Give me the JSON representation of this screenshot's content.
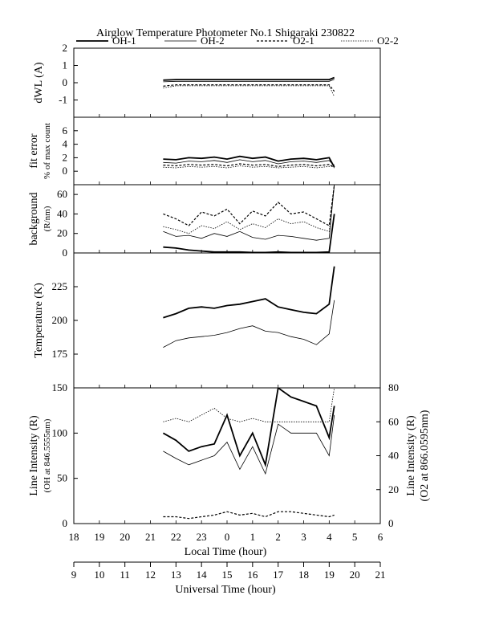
{
  "title": "Airglow Temperature Photometer No.1  Shigaraki  230822",
  "legend": [
    {
      "name": "OH-1",
      "dash": "none",
      "width": 1.8
    },
    {
      "name": "OH-2",
      "dash": "none",
      "width": 0.8
    },
    {
      "name": "O2-1",
      "dash": "3,2",
      "width": 1.2
    },
    {
      "name": "O2-2",
      "dash": "1.5,1.5",
      "width": 0.8
    }
  ],
  "x_axes": {
    "local": {
      "label": "Local Time (hour)",
      "ticks": [
        "18",
        "19",
        "20",
        "21",
        "22",
        "23",
        "0",
        "1",
        "2",
        "3",
        "4",
        "5",
        "6"
      ]
    },
    "universal": {
      "label": "Universal Time (hour)",
      "ticks": [
        "9",
        "10",
        "11",
        "12",
        "13",
        "14",
        "15",
        "16",
        "17",
        "18",
        "19",
        "20",
        "21"
      ]
    }
  },
  "chart_data": [
    {
      "panel": "dWL",
      "type": "line",
      "ylabel": [
        "dWL (A)"
      ],
      "ylim": [
        -2,
        2
      ],
      "yticks": [
        "2",
        "1",
        "0",
        "-1"
      ],
      "x": [
        21.5,
        22,
        22.5,
        23,
        23.5,
        0,
        0.5,
        1,
        1.5,
        2,
        2.5,
        3,
        3.5,
        4,
        4.2
      ],
      "series": [
        {
          "name": "OH-1",
          "values": [
            0.15,
            0.18,
            0.18,
            0.18,
            0.18,
            0.18,
            0.18,
            0.18,
            0.18,
            0.18,
            0.18,
            0.18,
            0.18,
            0.18,
            0.3
          ]
        },
        {
          "name": "OH-2",
          "values": [
            0.05,
            0.08,
            0.08,
            0.08,
            0.08,
            0.08,
            0.08,
            0.08,
            0.08,
            0.08,
            0.08,
            0.08,
            0.08,
            0.08,
            0.2
          ]
        },
        {
          "name": "O2-1",
          "values": [
            -0.2,
            -0.12,
            -0.12,
            -0.12,
            -0.12,
            -0.12,
            -0.12,
            -0.12,
            -0.12,
            -0.12,
            -0.12,
            -0.12,
            -0.12,
            -0.12,
            -0.5
          ]
        },
        {
          "name": "O2-2",
          "values": [
            -0.3,
            -0.18,
            -0.18,
            -0.18,
            -0.18,
            -0.18,
            -0.18,
            -0.18,
            -0.18,
            -0.18,
            -0.18,
            -0.18,
            -0.18,
            -0.18,
            -0.8
          ]
        }
      ]
    },
    {
      "panel": "fit error",
      "type": "line",
      "ylabel": [
        "fit error",
        "% of max count"
      ],
      "ylim": [
        -2,
        8
      ],
      "yticks": [
        "6",
        "4",
        "2",
        "0"
      ],
      "x": [
        21.5,
        22,
        22.5,
        23,
        23.5,
        0,
        0.5,
        1,
        1.5,
        2,
        2.5,
        3,
        3.5,
        4,
        4.2
      ],
      "series": [
        {
          "name": "OH-1",
          "values": [
            1.8,
            1.7,
            2.0,
            1.9,
            2.1,
            1.8,
            2.2,
            1.9,
            2.1,
            1.5,
            1.8,
            1.9,
            1.7,
            2.0,
            0.6
          ]
        },
        {
          "name": "OH-2",
          "values": [
            1.3,
            1.2,
            1.5,
            1.4,
            1.6,
            1.3,
            1.7,
            1.4,
            1.6,
            1.1,
            1.4,
            1.5,
            1.3,
            1.6,
            0.8
          ]
        },
        {
          "name": "O2-1",
          "values": [
            0.9,
            0.8,
            1.0,
            0.9,
            1.0,
            0.8,
            1.1,
            0.9,
            1.0,
            0.7,
            0.9,
            1.0,
            0.8,
            1.0,
            0.5
          ]
        },
        {
          "name": "O2-2",
          "values": [
            0.6,
            0.5,
            0.7,
            0.6,
            0.7,
            0.5,
            0.8,
            0.6,
            0.7,
            0.5,
            0.6,
            0.7,
            0.5,
            0.7,
            1.0
          ]
        }
      ]
    },
    {
      "panel": "background",
      "type": "line",
      "ylabel": [
        "background",
        "(R/nm)"
      ],
      "ylim": [
        0,
        70
      ],
      "yticks": [
        "60",
        "40",
        "20",
        "0"
      ],
      "x": [
        21.5,
        22,
        22.5,
        23,
        23.5,
        0,
        0.5,
        1,
        1.5,
        2,
        2.5,
        3,
        3.5,
        4,
        4.2
      ],
      "series": [
        {
          "name": "OH-1",
          "values": [
            6,
            5,
            3,
            2,
            1,
            1,
            1,
            0.5,
            0.5,
            1,
            0.5,
            0.5,
            0.5,
            1,
            40
          ]
        },
        {
          "name": "OH-2",
          "values": [
            22,
            17,
            18,
            15,
            20,
            17,
            22,
            16,
            14,
            18,
            17,
            15,
            13,
            15,
            70
          ]
        },
        {
          "name": "O2-1",
          "values": [
            40,
            35,
            28,
            42,
            38,
            45,
            30,
            43,
            38,
            52,
            40,
            42,
            35,
            28,
            70
          ]
        },
        {
          "name": "O2-2",
          "values": [
            27,
            24,
            20,
            28,
            25,
            32,
            24,
            30,
            26,
            35,
            30,
            32,
            26,
            22,
            70
          ]
        }
      ]
    },
    {
      "panel": "Temperature",
      "type": "line",
      "ylabel": [
        "Temperature (K)"
      ],
      "ylim": [
        150,
        250
      ],
      "yticks": [
        "225",
        "200",
        "175"
      ],
      "x": [
        21.5,
        22,
        22.5,
        23,
        23.5,
        0,
        0.5,
        1,
        1.5,
        2,
        2.5,
        3,
        3.5,
        4,
        4.2
      ],
      "series": [
        {
          "name": "OH-1",
          "values": [
            202,
            205,
            209,
            210,
            209,
            211,
            212,
            214,
            216,
            210,
            208,
            206,
            205,
            212,
            240
          ]
        },
        {
          "name": "OH-2",
          "values": [
            180,
            185,
            187,
            188,
            189,
            191,
            194,
            196,
            192,
            191,
            188,
            186,
            182,
            190,
            215
          ]
        }
      ]
    },
    {
      "panel": "Line Intensity",
      "type": "line",
      "ylabel": [
        "Line Intensity (R)",
        "(OH at 846.5555nm)"
      ],
      "y2label": [
        "Line Intensity (R)",
        "(O2 at 866.0595nm)"
      ],
      "ylim": [
        0,
        150
      ],
      "y2lim": [
        0,
        80
      ],
      "yticks": [
        "150",
        "100",
        "50",
        "0"
      ],
      "y2ticks": [
        "80",
        "60",
        "40",
        "20",
        "0"
      ],
      "x": [
        21.5,
        22,
        22.5,
        23,
        23.5,
        0,
        0.5,
        1,
        1.5,
        2,
        2.5,
        3,
        3.5,
        4,
        4.2
      ],
      "series": [
        {
          "name": "OH-1",
          "values": [
            100,
            92,
            80,
            85,
            88,
            120,
            75,
            100,
            65,
            150,
            140,
            135,
            130,
            95,
            130
          ]
        },
        {
          "name": "OH-2",
          "values": [
            80,
            72,
            65,
            70,
            75,
            90,
            60,
            85,
            55,
            110,
            100,
            100,
            100,
            75,
            120
          ]
        },
        {
          "name": "O2-1",
          "axis": "right",
          "values": [
            4,
            4,
            3,
            4,
            5,
            7,
            5,
            6,
            4,
            7,
            7,
            6,
            5,
            4,
            5
          ]
        },
        {
          "name": "O2-2",
          "axis": "right",
          "values": [
            60,
            62,
            60,
            64,
            68,
            62,
            60,
            62,
            60,
            60,
            60,
            60,
            60,
            60,
            80
          ]
        }
      ]
    }
  ]
}
